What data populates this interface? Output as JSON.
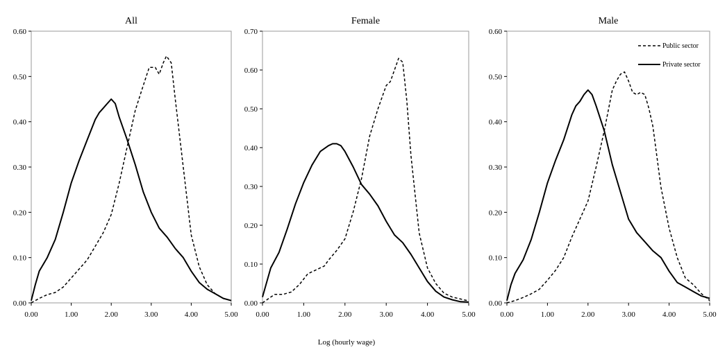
{
  "chart_data": {
    "type": "line",
    "common_xlabel": "Log (hourly wage)",
    "panels": [
      {
        "title": "All",
        "xlim": [
          0,
          5
        ],
        "ylim": [
          0,
          0.6
        ],
        "xticks": [
          "0.00",
          "1.00",
          "2.00",
          "3.00",
          "4.00",
          "5.00"
        ],
        "yticks": [
          "0.00",
          "0.10",
          "0.20",
          "0.30",
          "0.40",
          "0.50",
          "0.60"
        ],
        "legend": false,
        "series": [
          {
            "name": "Public sector",
            "style": "dashed",
            "x": [
              0,
              0.2,
              0.4,
              0.6,
              0.8,
              1.0,
              1.2,
              1.4,
              1.6,
              1.8,
              2.0,
              2.2,
              2.4,
              2.6,
              2.8,
              2.95,
              3.1,
              3.2,
              3.3,
              3.38,
              3.5,
              3.6,
              3.8,
              4.0,
              4.2,
              4.4,
              4.6,
              4.8,
              5.0
            ],
            "y": [
              0.0,
              0.01,
              0.018,
              0.023,
              0.035,
              0.055,
              0.075,
              0.095,
              0.125,
              0.155,
              0.195,
              0.265,
              0.345,
              0.425,
              0.48,
              0.52,
              0.52,
              0.505,
              0.53,
              0.545,
              0.53,
              0.45,
              0.3,
              0.15,
              0.08,
              0.04,
              0.02,
              0.01,
              0.005
            ]
          },
          {
            "name": "Private sector",
            "style": "solid",
            "x": [
              0,
              0.1,
              0.2,
              0.4,
              0.6,
              0.8,
              1.0,
              1.2,
              1.4,
              1.6,
              1.7,
              1.8,
              1.9,
              2.0,
              2.1,
              2.2,
              2.4,
              2.6,
              2.8,
              3.0,
              3.2,
              3.4,
              3.6,
              3.8,
              4.0,
              4.2,
              4.4,
              4.6,
              4.8,
              5.0
            ],
            "y": [
              0.005,
              0.04,
              0.07,
              0.1,
              0.14,
              0.2,
              0.265,
              0.315,
              0.36,
              0.405,
              0.42,
              0.43,
              0.44,
              0.45,
              0.44,
              0.41,
              0.36,
              0.305,
              0.245,
              0.2,
              0.165,
              0.145,
              0.12,
              0.1,
              0.07,
              0.045,
              0.03,
              0.02,
              0.01,
              0.005
            ]
          }
        ]
      },
      {
        "title": "Female",
        "xlim": [
          0,
          5
        ],
        "ylim": [
          0,
          0.7
        ],
        "xticks": [
          "0.00",
          "1.00",
          "2.00",
          "3.00",
          "4.00",
          "5.00"
        ],
        "yticks": [
          "0.00",
          "0.10",
          "0.20",
          "0.30",
          "0.40",
          "0.50",
          "0.60",
          "0.70"
        ],
        "legend": false,
        "series": [
          {
            "name": "Public sector",
            "style": "dashed",
            "x": [
              0,
              0.2,
              0.3,
              0.5,
              0.7,
              0.9,
              1.1,
              1.3,
              1.5,
              1.6,
              1.8,
              2.0,
              2.2,
              2.4,
              2.6,
              2.8,
              3.0,
              3.1,
              3.2,
              3.3,
              3.4,
              3.5,
              3.6,
              3.8,
              4.0,
              4.2,
              4.4,
              4.6,
              4.8,
              5.0
            ],
            "y": [
              0.0,
              0.015,
              0.022,
              0.022,
              0.028,
              0.048,
              0.075,
              0.085,
              0.095,
              0.11,
              0.135,
              0.165,
              0.235,
              0.32,
              0.43,
              0.5,
              0.56,
              0.57,
              0.6,
              0.63,
              0.62,
              0.52,
              0.38,
              0.18,
              0.09,
              0.05,
              0.025,
              0.015,
              0.01,
              0.005
            ]
          },
          {
            "name": "Private sector",
            "style": "solid",
            "x": [
              0,
              0.2,
              0.4,
              0.6,
              0.8,
              1.0,
              1.2,
              1.4,
              1.6,
              1.7,
              1.8,
              1.9,
              2.0,
              2.2,
              2.4,
              2.6,
              2.8,
              3.0,
              3.2,
              3.4,
              3.6,
              3.8,
              4.0,
              4.2,
              4.4,
              4.6,
              4.8,
              5.0
            ],
            "y": [
              0.015,
              0.09,
              0.13,
              0.19,
              0.255,
              0.31,
              0.355,
              0.39,
              0.405,
              0.41,
              0.41,
              0.405,
              0.39,
              0.35,
              0.305,
              0.28,
              0.25,
              0.21,
              0.175,
              0.155,
              0.125,
              0.09,
              0.055,
              0.03,
              0.015,
              0.008,
              0.003,
              0.002
            ]
          }
        ]
      },
      {
        "title": "Male",
        "xlim": [
          0,
          5
        ],
        "ylim": [
          0,
          0.6
        ],
        "xticks": [
          "0.00",
          "1.00",
          "2.00",
          "3.00",
          "4.00",
          "5.00"
        ],
        "yticks": [
          "0.00",
          "0.10",
          "0.20",
          "0.30",
          "0.40",
          "0.50",
          "0.60"
        ],
        "legend": true,
        "legend_position": "top-right",
        "series": [
          {
            "name": "Public sector",
            "style": "dashed",
            "x": [
              0,
              0.2,
              0.4,
              0.6,
              0.8,
              1.0,
              1.2,
              1.4,
              1.6,
              1.8,
              2.0,
              2.2,
              2.4,
              2.6,
              2.7,
              2.8,
              2.9,
              3.0,
              3.1,
              3.2,
              3.3,
              3.4,
              3.5,
              3.6,
              3.8,
              4.0,
              4.2,
              4.4,
              4.6,
              4.8,
              5.0
            ],
            "y": [
              0.0,
              0.005,
              0.012,
              0.02,
              0.03,
              0.05,
              0.072,
              0.1,
              0.145,
              0.185,
              0.225,
              0.3,
              0.38,
              0.47,
              0.49,
              0.505,
              0.51,
              0.49,
              0.465,
              0.46,
              0.465,
              0.46,
              0.43,
              0.39,
              0.255,
              0.165,
              0.1,
              0.055,
              0.04,
              0.02,
              0.005
            ]
          },
          {
            "name": "Private sector",
            "style": "solid",
            "x": [
              0,
              0.1,
              0.2,
              0.4,
              0.6,
              0.8,
              1.0,
              1.2,
              1.4,
              1.6,
              1.7,
              1.8,
              1.9,
              2.0,
              2.1,
              2.2,
              2.4,
              2.6,
              2.8,
              3.0,
              3.2,
              3.4,
              3.6,
              3.8,
              4.0,
              4.2,
              4.4,
              4.6,
              4.8,
              5.0
            ],
            "y": [
              0.005,
              0.04,
              0.065,
              0.095,
              0.14,
              0.2,
              0.265,
              0.315,
              0.36,
              0.415,
              0.435,
              0.445,
              0.46,
              0.47,
              0.46,
              0.435,
              0.38,
              0.305,
              0.245,
              0.185,
              0.155,
              0.135,
              0.115,
              0.1,
              0.07,
              0.045,
              0.035,
              0.025,
              0.015,
              0.01
            ]
          }
        ]
      }
    ]
  }
}
